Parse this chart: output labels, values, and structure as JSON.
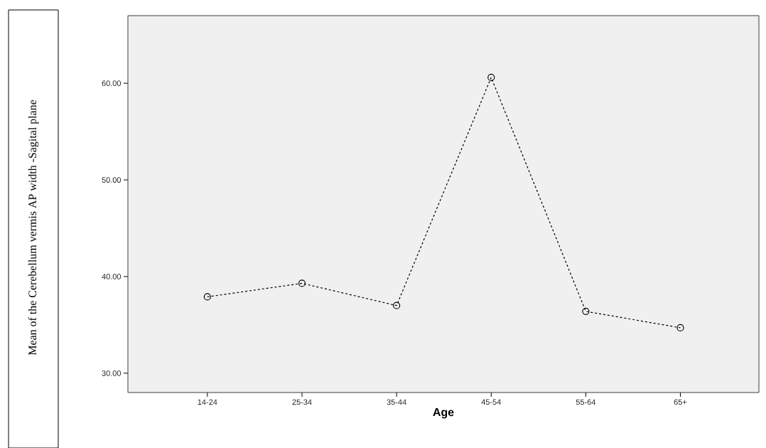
{
  "chart_data": {
    "type": "line",
    "xlabel": "Age",
    "annotations": [
      "Mean of the Cerebellum vermis AP width -Sagital plane"
    ],
    "categories": [
      "14-24",
      "25-34",
      "35-44",
      "45-54",
      "55-64",
      "65+"
    ],
    "values": [
      37.9,
      39.3,
      37.0,
      60.6,
      36.4,
      34.7
    ],
    "color": "#000000",
    "marker": "circle",
    "line_style": "dashed",
    "ylim": [
      28,
      67
    ],
    "yticks": [
      {
        "value": 30,
        "label": "30.00"
      },
      {
        "value": 40,
        "label": "40.00"
      },
      {
        "value": 50,
        "label": "50.00"
      },
      {
        "value": 60,
        "label": "60.00"
      }
    ],
    "grid": false
  }
}
